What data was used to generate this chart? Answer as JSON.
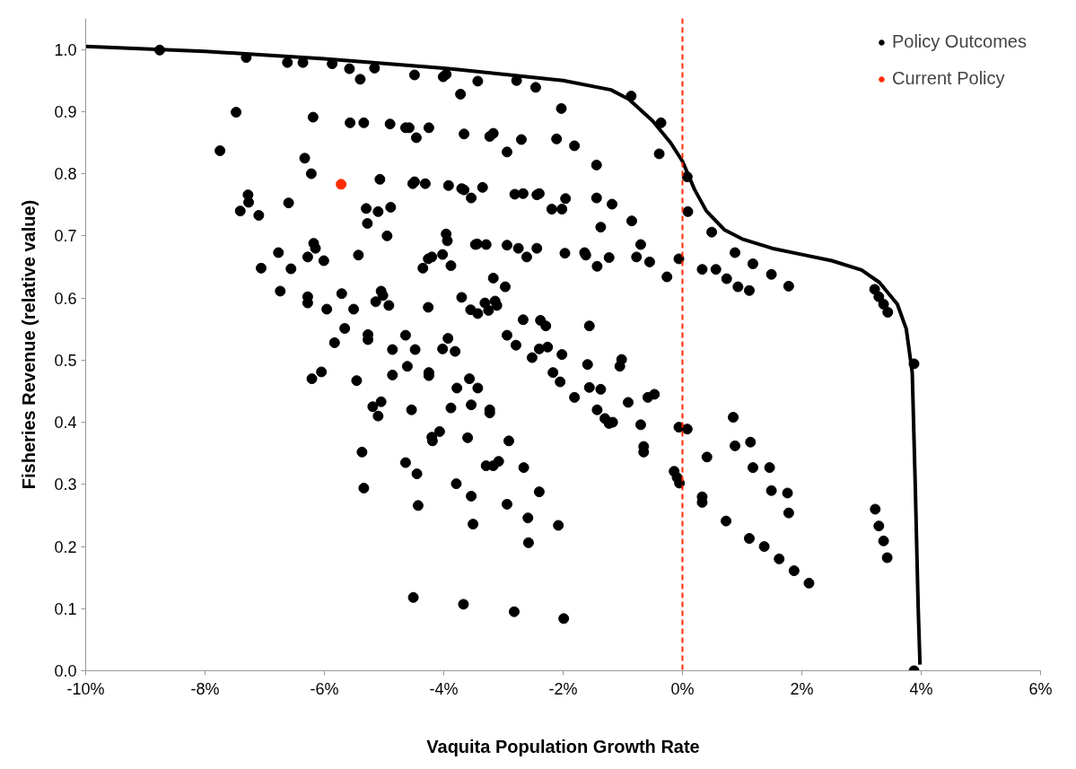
{
  "chart_data": {
    "type": "scatter",
    "xlabel": "Vaquita Population Growth Rate",
    "ylabel": "Fisheries Revenue (relative value)",
    "xlim": [
      -10,
      6
    ],
    "ylim": [
      0,
      1.05
    ],
    "xticks": [
      {
        "value": -10,
        "label": "-10%"
      },
      {
        "value": -8,
        "label": "-8%"
      },
      {
        "value": -6,
        "label": "-6%"
      },
      {
        "value": -4,
        "label": "-4%"
      },
      {
        "value": -2,
        "label": "-2%"
      },
      {
        "value": 0,
        "label": "0%"
      },
      {
        "value": 2,
        "label": "2%"
      },
      {
        "value": 4,
        "label": "4%"
      },
      {
        "value": 6,
        "label": "6%"
      }
    ],
    "yticks": [
      {
        "value": 0,
        "label": "0.0"
      },
      {
        "value": 0.1,
        "label": "0.1"
      },
      {
        "value": 0.2,
        "label": "0.2"
      },
      {
        "value": 0.3,
        "label": "0.3"
      },
      {
        "value": 0.4,
        "label": "0.4"
      },
      {
        "value": 0.5,
        "label": "0.5"
      },
      {
        "value": 0.6,
        "label": "0.6"
      },
      {
        "value": 0.7,
        "label": "0.7"
      },
      {
        "value": 0.8,
        "label": "0.8"
      },
      {
        "value": 0.9,
        "label": "0.9"
      },
      {
        "value": 1.0,
        "label": "1.0"
      }
    ],
    "grid": false,
    "legend": "top right",
    "marker": "circle",
    "ref_lines": [
      {
        "axis": "x",
        "value": 0,
        "color": "#ff2a00",
        "line_style": "dashed"
      }
    ],
    "series": [
      {
        "type": "line",
        "color": "#000000",
        "marker": "none",
        "x": [
          -10,
          -8,
          -6,
          -4,
          -2,
          -1.2,
          -0.9,
          -0.5,
          -0.2,
          0,
          0.2,
          0.4,
          0.7,
          1.0,
          1.5,
          2.0,
          2.5,
          3.0,
          3.3,
          3.6,
          3.75,
          3.85,
          3.9,
          3.95,
          3.98
        ],
        "values": [
          1.005,
          0.997,
          0.985,
          0.97,
          0.95,
          0.935,
          0.92,
          0.885,
          0.85,
          0.82,
          0.775,
          0.74,
          0.71,
          0.695,
          0.68,
          0.67,
          0.66,
          0.645,
          0.625,
          0.59,
          0.55,
          0.48,
          0.3,
          0.1,
          0.01
        ]
      },
      {
        "name": "Policy Outcomes",
        "color": "#000000",
        "x": [
          -8.76,
          -7.31,
          -6.62,
          -6.36,
          -5.87,
          -5.58,
          -5.4,
          -5.16,
          -4.49,
          -4.01,
          -3.96,
          -3.72,
          -3.43,
          -2.78,
          -2.46,
          -2.03,
          -0.86,
          -0.36,
          -7.48,
          -6.19,
          -5.57,
          -5.34,
          -4.9,
          -4.64,
          -4.58,
          -4.46,
          -4.25,
          -3.66,
          -3.23,
          -3.17,
          -2.94,
          -2.7,
          -2.11,
          -1.81,
          -1.44,
          -0.39,
          0.08,
          -7.75,
          -6.33,
          -6.22,
          -5.07,
          -4.52,
          -4.49,
          -4.31,
          -3.92,
          -3.7,
          -3.66,
          -3.54,
          -3.35,
          -2.81,
          -2.67,
          -2.44,
          -2.4,
          -1.96,
          -2.19,
          -2.02,
          -1.44,
          -1.18,
          -0.85,
          -1.37,
          0.09,
          -7.28,
          -7.27,
          -7.41,
          -7.1,
          -6.6,
          -5.3,
          -5.1,
          -4.89,
          -5.28,
          -4.95,
          -3.96,
          -3.94,
          -4.02,
          -4.26,
          -4.2,
          -4.35,
          -3.88,
          -3.47,
          -3.44,
          -3.29,
          -2.94,
          -2.75,
          -2.61,
          -2.44,
          -1.97,
          -1.64,
          -1.62,
          -1.43,
          -1.23,
          -0.7,
          -0.77,
          -0.55,
          -0.06,
          -0.26,
          0.49,
          0.88,
          1.18,
          0.33,
          0.56,
          0.74,
          0.93,
          1.12,
          1.49,
          1.78,
          3.22,
          3.29,
          3.37,
          3.44,
          3.88,
          3.88,
          -6.18,
          -6.15,
          -6.77,
          -6.28,
          -6.01,
          -5.43,
          -7.06,
          -6.56,
          -6.74,
          -6.28,
          -6.28,
          -5.71,
          -5.96,
          -5.51,
          -5.05,
          -5.02,
          -5.14,
          -4.92,
          -4.26,
          -3.17,
          -2.97,
          -3.7,
          -3.55,
          -3.43,
          -3.31,
          -3.14,
          -3.11,
          -3.25,
          -2.67,
          -2.38,
          -2.29,
          -1.56,
          -5.66,
          -5.83,
          -5.27,
          -5.27,
          -4.64,
          -4.86,
          -4.48,
          -3.93,
          -4.02,
          -3.81,
          -2.94,
          -2.79,
          -2.4,
          -2.26,
          -6.21,
          -6.05,
          -5.46,
          -4.86,
          -5.19,
          -5.05,
          -5.1,
          -5.37,
          -5.34,
          -4.61,
          -4.25,
          -4.25,
          -4.54,
          -3.57,
          -3.78,
          -3.43,
          -3.88,
          -3.54,
          -3.23,
          -3.23,
          -4.2,
          -4.19,
          -4.07,
          -3.6,
          -2.91,
          -4.64,
          -4.45,
          -4.43,
          -3.79,
          -3.54,
          -3.51,
          -3.29,
          -3.17,
          -3.08,
          -2.66,
          -2.94,
          -2.4,
          -2.59,
          -2.58,
          -2.08,
          -4.51,
          -3.67,
          -2.82,
          -1.99,
          -2.52,
          -2.02,
          -1.59,
          -1.02,
          -1.05,
          -2.17,
          -2.05,
          -1.81,
          -1.56,
          -1.37,
          -1.43,
          -1.3,
          -1.23,
          -1.17,
          -0.91,
          -0.58,
          -0.47,
          -0.7,
          -0.65,
          -0.65,
          -0.06,
          0.08,
          -0.14,
          -0.09,
          -0.05,
          0.33,
          0.33,
          0.41,
          0.85,
          0.88,
          1.14,
          1.18,
          1.46,
          1.49,
          1.76,
          1.78,
          0.73,
          1.12,
          1.37,
          1.62,
          1.87,
          2.12,
          3.23,
          3.29,
          3.37,
          3.43
        ],
        "values": [
          0.999,
          0.987,
          0.979,
          0.979,
          0.977,
          0.969,
          0.952,
          0.97,
          0.959,
          0.956,
          0.96,
          0.928,
          0.949,
          0.95,
          0.939,
          0.905,
          0.925,
          0.882,
          0.899,
          0.891,
          0.882,
          0.882,
          0.88,
          0.874,
          0.874,
          0.858,
          0.874,
          0.864,
          0.86,
          0.865,
          0.835,
          0.855,
          0.856,
          0.845,
          0.814,
          0.832,
          0.795,
          0.837,
          0.825,
          0.8,
          0.791,
          0.784,
          0.787,
          0.784,
          0.781,
          0.776,
          0.774,
          0.761,
          0.778,
          0.767,
          0.768,
          0.766,
          0.768,
          0.76,
          0.743,
          0.743,
          0.761,
          0.751,
          0.724,
          0.714,
          0.739,
          0.766,
          0.754,
          0.74,
          0.733,
          0.753,
          0.744,
          0.739,
          0.746,
          0.72,
          0.7,
          0.703,
          0.692,
          0.67,
          0.663,
          0.666,
          0.648,
          0.652,
          0.686,
          0.687,
          0.686,
          0.685,
          0.68,
          0.666,
          0.68,
          0.672,
          0.673,
          0.669,
          0.651,
          0.665,
          0.686,
          0.666,
          0.658,
          0.663,
          0.634,
          0.706,
          0.673,
          0.655,
          0.646,
          0.646,
          0.631,
          0.618,
          0.612,
          0.638,
          0.619,
          0.614,
          0.602,
          0.59,
          0.577,
          0.494,
          0.0,
          0.688,
          0.68,
          0.673,
          0.666,
          0.66,
          0.669,
          0.648,
          0.647,
          0.611,
          0.602,
          0.592,
          0.607,
          0.582,
          0.582,
          0.611,
          0.604,
          0.594,
          0.588,
          0.585,
          0.632,
          0.618,
          0.601,
          0.581,
          0.575,
          0.592,
          0.595,
          0.588,
          0.58,
          0.565,
          0.564,
          0.555,
          0.555,
          0.551,
          0.528,
          0.541,
          0.533,
          0.54,
          0.517,
          0.517,
          0.535,
          0.518,
          0.514,
          0.54,
          0.524,
          0.518,
          0.521,
          0.47,
          0.481,
          0.467,
          0.476,
          0.425,
          0.433,
          0.41,
          0.352,
          0.294,
          0.49,
          0.48,
          0.475,
          0.42,
          0.47,
          0.455,
          0.455,
          0.423,
          0.428,
          0.42,
          0.415,
          0.376,
          0.37,
          0.385,
          0.375,
          0.37,
          0.335,
          0.317,
          0.266,
          0.301,
          0.281,
          0.236,
          0.33,
          0.33,
          0.337,
          0.327,
          0.268,
          0.288,
          0.246,
          0.206,
          0.234,
          0.118,
          0.107,
          0.095,
          0.084,
          0.504,
          0.509,
          0.493,
          0.501,
          0.49,
          0.48,
          0.465,
          0.44,
          0.456,
          0.453,
          0.42,
          0.406,
          0.398,
          0.4,
          0.432,
          0.44,
          0.445,
          0.396,
          0.361,
          0.352,
          0.392,
          0.389,
          0.321,
          0.311,
          0.302,
          0.28,
          0.271,
          0.344,
          0.408,
          0.362,
          0.368,
          0.327,
          0.327,
          0.29,
          0.286,
          0.254,
          0.241,
          0.213,
          0.2,
          0.18,
          0.161,
          0.141,
          0.26,
          0.233,
          0.209,
          0.182
        ]
      },
      {
        "name": "Current Policy",
        "color": "#ff2a00",
        "x": [
          -5.72
        ],
        "values": [
          0.783
        ]
      }
    ]
  }
}
